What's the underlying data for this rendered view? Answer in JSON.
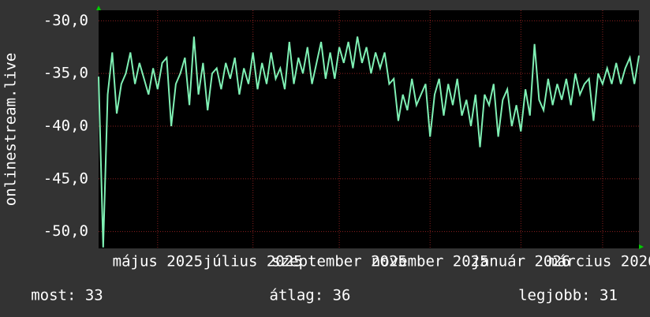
{
  "chart_data": {
    "type": "line",
    "ylabel": "onlinestream.live",
    "color": "#7ff0b4",
    "grid": true,
    "values": [
      -35.3,
      -51.5,
      -37,
      -33,
      -38.8,
      -36,
      -35,
      -33,
      -36,
      -34,
      -35.5,
      -37,
      -34.5,
      -36.5,
      -34,
      -33.5,
      -40,
      -36,
      -35,
      -33.5,
      -38,
      -31.5,
      -37,
      -34,
      -38.5,
      -35,
      -34.5,
      -36.5,
      -34,
      -35.5,
      -33.5,
      -37,
      -34.5,
      -36,
      -33,
      -36.5,
      -34,
      -36,
      -33,
      -35.5,
      -34.5,
      -36.5,
      -32,
      -36,
      -33.5,
      -35,
      -32.5,
      -36,
      -34,
      -32,
      -35.5,
      -33,
      -35.5,
      -32.5,
      -34,
      -32,
      -34.5,
      -31.5,
      -34,
      -32.5,
      -35,
      -33,
      -34.5,
      -33,
      -36,
      -35.5,
      -39.5,
      -37,
      -38.5,
      -35.5,
      -38,
      -37,
      -36,
      -41,
      -37,
      -35.5,
      -39,
      -36,
      -38,
      -35.5,
      -39,
      -37.5,
      -40,
      -37,
      -42,
      -37,
      -38,
      -36,
      -41,
      -37.5,
      -36.5,
      -40,
      -38,
      -40.5,
      -36.5,
      -39,
      -32.2,
      -37.5,
      -38.5,
      -35.5,
      -38,
      -36,
      -37.5,
      -35.5,
      -38,
      -35,
      -37,
      -36,
      -35.5,
      -39.5,
      -35,
      -36,
      -34.5,
      -36,
      -34,
      -36,
      -34.5,
      -33.5,
      -36,
      -33.3
    ],
    "xticks": [
      {
        "value": 13,
        "label": "május 2025"
      },
      {
        "value": 34,
        "label": "július 2025"
      },
      {
        "value": 53,
        "label": "szeptember 2025"
      },
      {
        "value": 73,
        "label": "november 2025"
      },
      {
        "value": 93,
        "label": "január 2026"
      },
      {
        "value": 111,
        "label": "március 2026"
      }
    ],
    "ylim": [
      -51.6,
      -29.0
    ],
    "yticks": [
      {
        "value": -30,
        "label": "-30,0"
      },
      {
        "value": -35,
        "label": "-35,0"
      },
      {
        "value": -40,
        "label": "-40,0"
      },
      {
        "value": -45,
        "label": "-45,0"
      },
      {
        "value": -50,
        "label": "-50,0"
      }
    ],
    "footer": [
      "most: 33",
      "átlag: 36",
      "legjobb: 31"
    ]
  }
}
